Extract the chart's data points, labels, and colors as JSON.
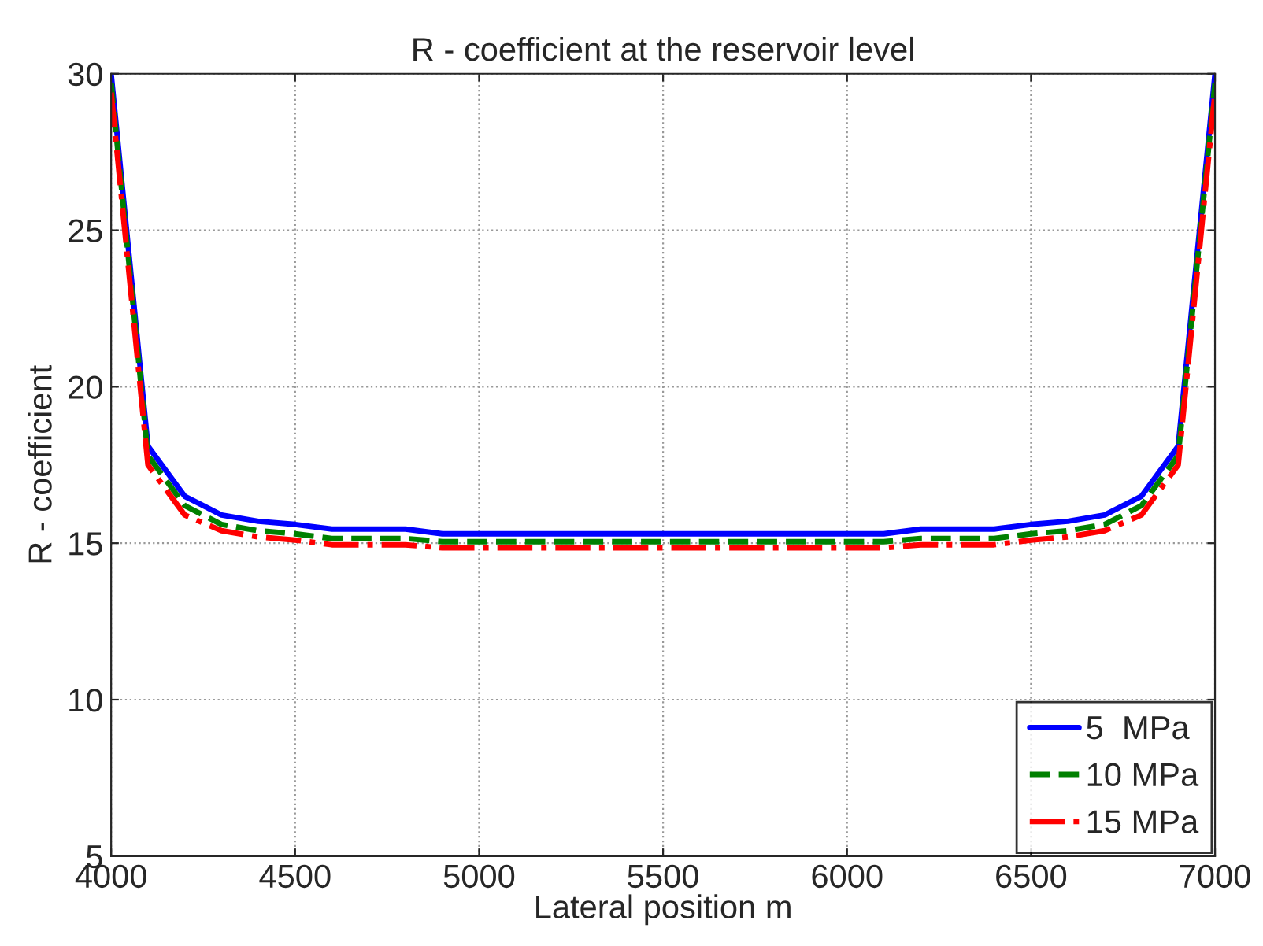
{
  "chart_data": {
    "type": "line",
    "title": "R - coefficient at the reservoir level",
    "xlabel": "Lateral position m",
    "ylabel": "R - coefficient",
    "x": [
      4000,
      4100,
      4200,
      4300,
      4400,
      4500,
      4600,
      4700,
      4800,
      4900,
      5000,
      5100,
      5200,
      5300,
      5400,
      5500,
      5600,
      5700,
      5800,
      5900,
      6000,
      6100,
      6200,
      6300,
      6400,
      6500,
      6600,
      6700,
      6800,
      6900,
      7000
    ],
    "series": [
      {
        "name": "5  MPa",
        "color": "#0000ff",
        "line_style": "solid",
        "values": [
          30,
          18.1,
          16.5,
          15.9,
          15.7,
          15.6,
          15.45,
          15.45,
          15.45,
          15.3,
          15.3,
          15.3,
          15.3,
          15.3,
          15.3,
          15.3,
          15.3,
          15.3,
          15.3,
          15.3,
          15.3,
          15.3,
          15.45,
          15.45,
          15.45,
          15.6,
          15.7,
          15.9,
          16.5,
          18.1,
          30
        ]
      },
      {
        "name": "10 MPa",
        "color": "#008000",
        "line_style": "dashed",
        "values": [
          29.7,
          17.8,
          16.2,
          15.6,
          15.4,
          15.3,
          15.15,
          15.15,
          15.15,
          15.05,
          15.05,
          15.05,
          15.05,
          15.05,
          15.05,
          15.05,
          15.05,
          15.05,
          15.05,
          15.05,
          15.05,
          15.05,
          15.15,
          15.15,
          15.15,
          15.3,
          15.4,
          15.6,
          16.2,
          17.8,
          29.7
        ]
      },
      {
        "name": "15 MPa",
        "color": "#ff0000",
        "line_style": "dashdot",
        "values": [
          29.4,
          17.5,
          15.9,
          15.4,
          15.2,
          15.1,
          14.95,
          14.95,
          14.95,
          14.85,
          14.85,
          14.85,
          14.85,
          14.85,
          14.85,
          14.85,
          14.85,
          14.85,
          14.85,
          14.85,
          14.85,
          14.85,
          14.95,
          14.95,
          14.95,
          15.1,
          15.2,
          15.4,
          15.9,
          17.5,
          29.4
        ]
      }
    ],
    "xlim": [
      4000,
      7000
    ],
    "xticks": [
      4000,
      4500,
      5000,
      5500,
      6000,
      6500,
      7000
    ],
    "ylim": [
      5,
      30
    ],
    "yticks": [
      5,
      10,
      15,
      20,
      25,
      30
    ],
    "grid": true,
    "legend": "bottom right"
  }
}
